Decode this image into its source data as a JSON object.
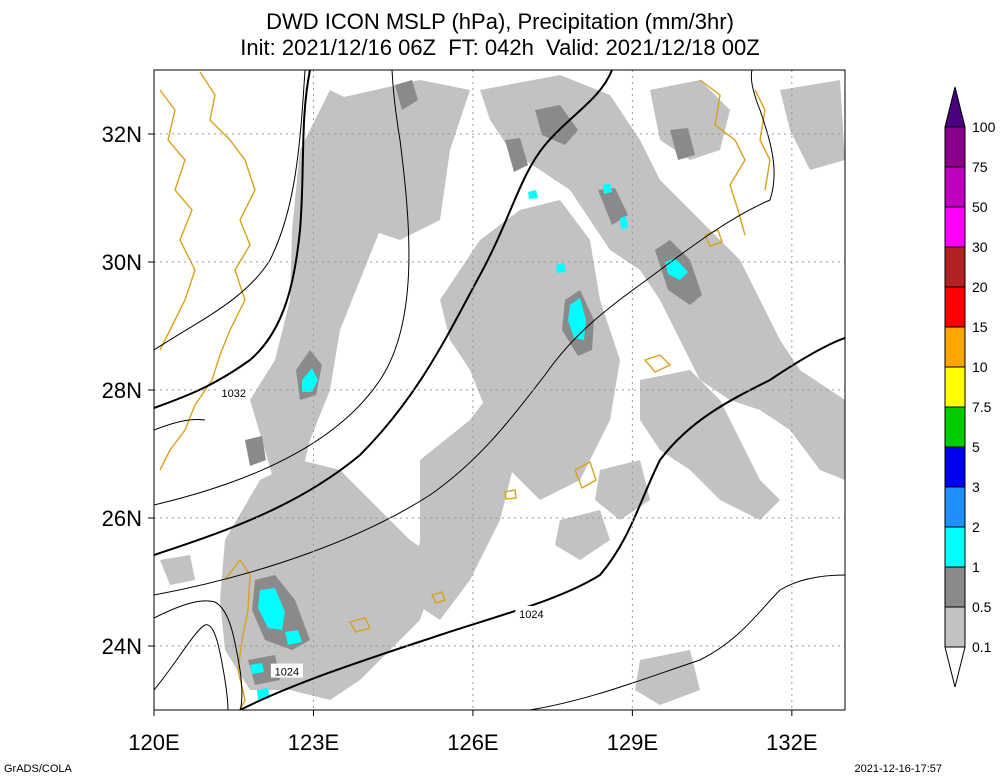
{
  "title_line1": "DWD ICON MSLP (hPa), Precipitation (mm/3hr)",
  "title_line2": "Init: 2021/12/16 06Z  FT: 042h  Valid: 2021/12/18 00Z",
  "footer_left": "GrADS/COLA",
  "footer_right": "2021-12-16-17:57",
  "map": {
    "lon_range": [
      120,
      133
    ],
    "lat_range": [
      23,
      33
    ],
    "lon_ticks": [
      {
        "value": 120,
        "label": "120E"
      },
      {
        "value": 123,
        "label": "123E"
      },
      {
        "value": 126,
        "label": "126E"
      },
      {
        "value": 129,
        "label": "129E"
      },
      {
        "value": 132,
        "label": "132E"
      }
    ],
    "lat_ticks": [
      {
        "value": 24,
        "label": "24N"
      },
      {
        "value": 26,
        "label": "26N"
      },
      {
        "value": 28,
        "label": "28N"
      },
      {
        "value": 30,
        "label": "30N"
      },
      {
        "value": 32,
        "label": "32N"
      }
    ],
    "isobar_labels": [
      {
        "text": "1032",
        "lon": 121.5,
        "lat": 27.95
      },
      {
        "text": "1024",
        "lon": 127.1,
        "lat": 24.5
      },
      {
        "text": "1024",
        "lon": 122.5,
        "lat": 23.6
      }
    ],
    "coastline_color": "#d9a21e",
    "grid_style": "dotted"
  },
  "colorbar": {
    "labels": [
      "0.1",
      "0.5",
      "1",
      "2",
      "3",
      "5",
      "7.5",
      "10",
      "15",
      "20",
      "30",
      "50",
      "75",
      "100"
    ],
    "colors": [
      "#c2c2c2",
      "#8a8a8a",
      "#00ffff",
      "#1e90ff",
      "#0000ee",
      "#00cc00",
      "#ffff00",
      "#ffa500",
      "#ff0000",
      "#b22222",
      "#ff00ff",
      "#c000c0",
      "#8b008b",
      "#4b0082"
    ]
  }
}
